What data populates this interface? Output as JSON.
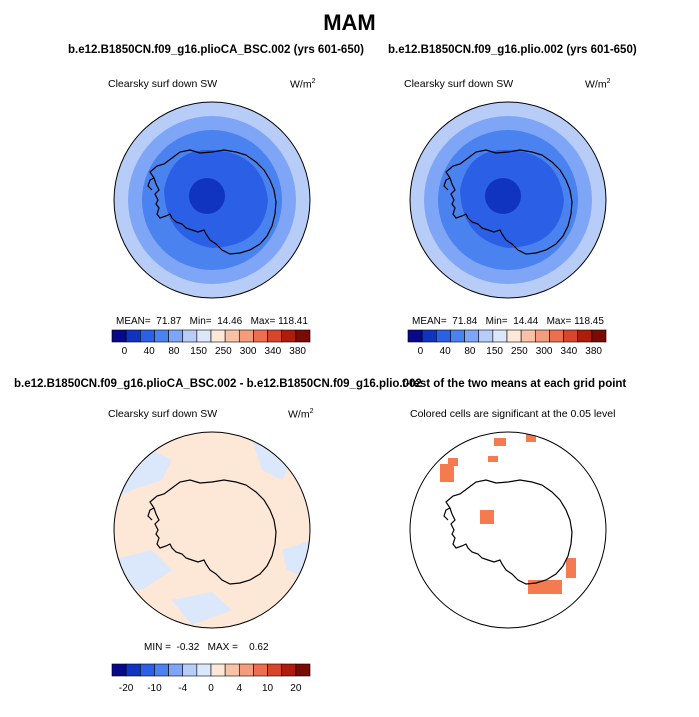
{
  "title": "MAM",
  "panels": [
    {
      "run_title": "b.e12.B1850CN.f09_g16.plioCA_BSC.002 (yrs 601-650)",
      "var_title": "Clearsky surf down SW",
      "units": "W/m",
      "units_exp": "2",
      "stats": {
        "mean_label": "MEAN=",
        "mean": "71.87",
        "min_label": "Min=",
        "min": "14.46",
        "max_label": "Max=",
        "max": "118.41"
      }
    },
    {
      "run_title": "b.e12.B1850CN.f09_g16.plio.002 (yrs 601-650)",
      "var_title": "Clearsky surf down SW",
      "units": "W/m",
      "units_exp": "2",
      "stats": {
        "mean_label": "MEAN=",
        "mean": "71.84",
        "min_label": "Min=",
        "min": "14.44",
        "max_label": "Max=",
        "max": "118.45"
      }
    },
    {
      "run_title": "b.e12.B1850CN.f09_g16.plioCA_BSC.002 - b.e12.B1850CN.f09_g16.plio.002",
      "var_title": "Clearsky surf down SW",
      "units": "W/m",
      "units_exp": "2",
      "stats": {
        "min_label": "MIN =",
        "min": "-0.32",
        "max_label": "MAX =",
        "max": "0.62"
      }
    },
    {
      "run_title": "t-test of the two means at each grid point",
      "var_title": "Colored cells are significant at the 0.05 level"
    }
  ],
  "colorbar_abs": {
    "colors": [
      "#08088a",
      "#1034c0",
      "#2a5fe6",
      "#4a82f0",
      "#7fa6f6",
      "#b8ccf8",
      "#dbe7fb",
      "#fde7d6",
      "#f9c2a6",
      "#f49c7e",
      "#ec6f50",
      "#d8452a",
      "#b01c0c",
      "#7a0a04"
    ],
    "labels": [
      "0",
      "40",
      "80",
      "150",
      "250",
      "300",
      "340",
      "380"
    ]
  },
  "colorbar_diff": {
    "colors": [
      "#08088a",
      "#1034c0",
      "#2a5fe6",
      "#4a82f0",
      "#7fa6f6",
      "#b8ccf8",
      "#dbe7fb",
      "#fde7d6",
      "#f9c2a6",
      "#f49c7e",
      "#ec6f50",
      "#d8452a",
      "#b01c0c",
      "#7a0a04"
    ],
    "labels": [
      "-20",
      "-10",
      "-4",
      "0",
      "4",
      "10",
      "20"
    ]
  },
  "field_colors": {
    "ring_outer": "#b8ccf8",
    "ring_2": "#7fa6f6",
    "ring_3": "#4a82f0",
    "ring_4": "#2a5fe6",
    "center": "#1034c0",
    "diff_positive": "#fde7d6",
    "diff_negative": "#dbe7fb",
    "significant": "#f47a50"
  }
}
